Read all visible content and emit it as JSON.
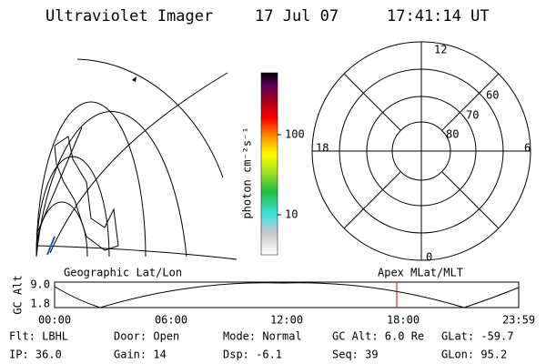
{
  "header": {
    "title": "Ultraviolet Imager",
    "date": "17 Jul 07",
    "time": "17:41:14 UT"
  },
  "left_panel": {
    "label": "Geographic Lat/Lon"
  },
  "colorbar": {
    "label": "photon cm⁻²s⁻¹",
    "ticks": [
      "100",
      "10"
    ]
  },
  "polar": {
    "label": "Apex MLat/MLT",
    "hours": [
      "12",
      "18",
      "6",
      "0"
    ],
    "latitudes": [
      "60",
      "70",
      "80"
    ]
  },
  "altitude": {
    "label": "GC Alt",
    "ticks": [
      "9.0",
      "1.8"
    ],
    "times": [
      "00:00",
      "06:00",
      "12:00",
      "18:00",
      "23:59"
    ]
  },
  "status": [
    [
      "Flt: LBHL",
      "Door: Open",
      "Mode: Normal",
      "GC Alt: 6.0 Re",
      "GLat: -59.7"
    ],
    [
      "IP: 36.0",
      "Gain: 14",
      "Dsp: -6.1",
      "Seq: 39",
      "GLon: 95.2"
    ]
  ]
}
